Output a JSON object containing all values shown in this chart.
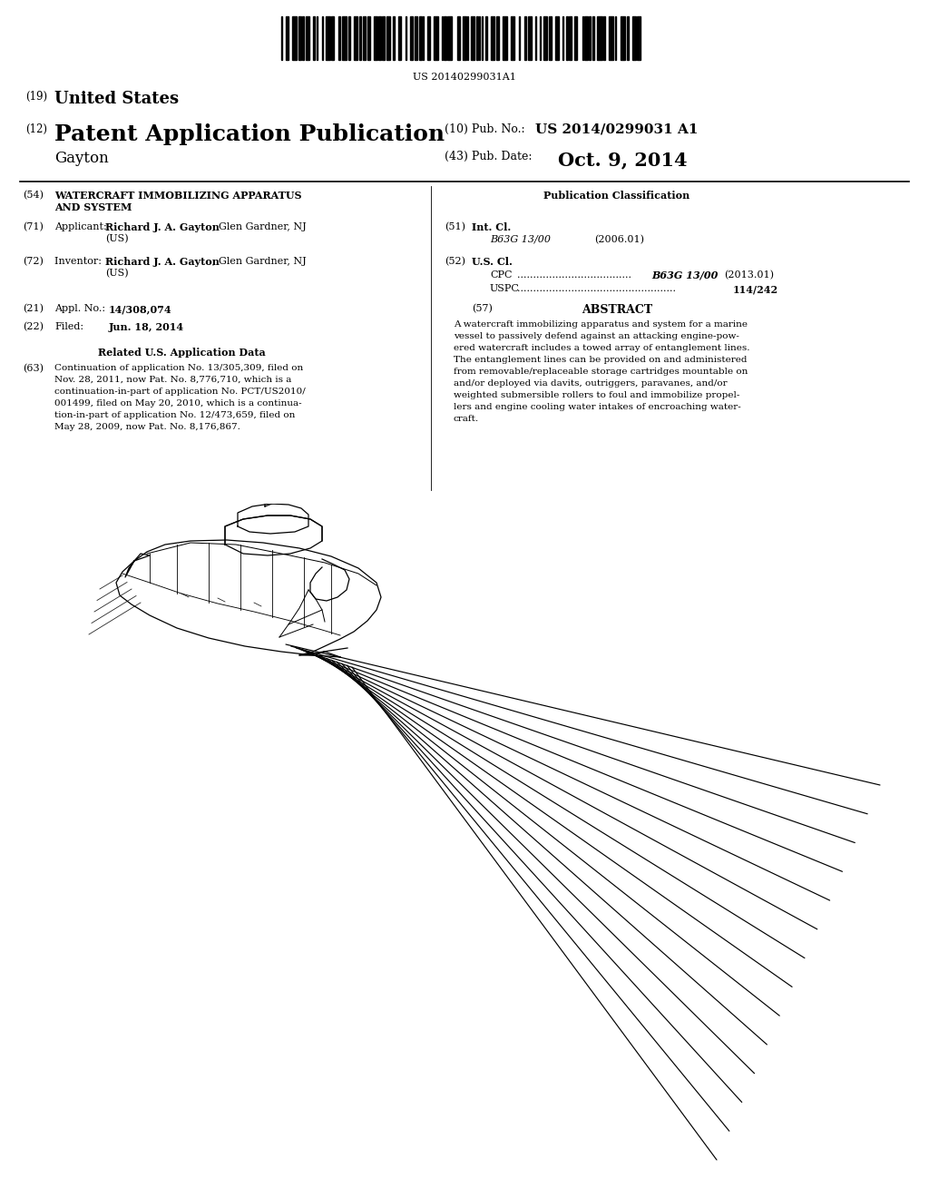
{
  "background_color": "#ffffff",
  "barcode_text": "US 20140299031A1",
  "pub_no_label": "(10) Pub. No.:",
  "pub_no": "US 2014/0299031 A1",
  "pub_date_label": "(43) Pub. Date:",
  "pub_date": "Oct. 9, 2014",
  "related_text": "Continuation of application No. 13/305,309, filed on\nNov. 28, 2011, now Pat. No. 8,776,710, which is a\ncontinuation-in-part of application No. PCT/US2010/\n001499, filed on May 20, 2010, which is a continua-\ntion-in-part of application No. 12/473,659, filed on\nMay 28, 2009, now Pat. No. 8,176,867.",
  "abstract_text": "A watercraft immobilizing apparatus and system for a marine\nvessel to passively defend against an attacking engine-pow-\nered watercraft includes a towed array of entanglement lines.\nThe entanglement lines can be provided on and administered\nfrom removable/replaceable storage cartridges mountable on\nand/or deployed via davits, outriggers, paravanes, and/or\nweighted submersible rollers to foul and immobilize propel-\nlers and engine cooling water intakes of encroaching water-\ncraft."
}
